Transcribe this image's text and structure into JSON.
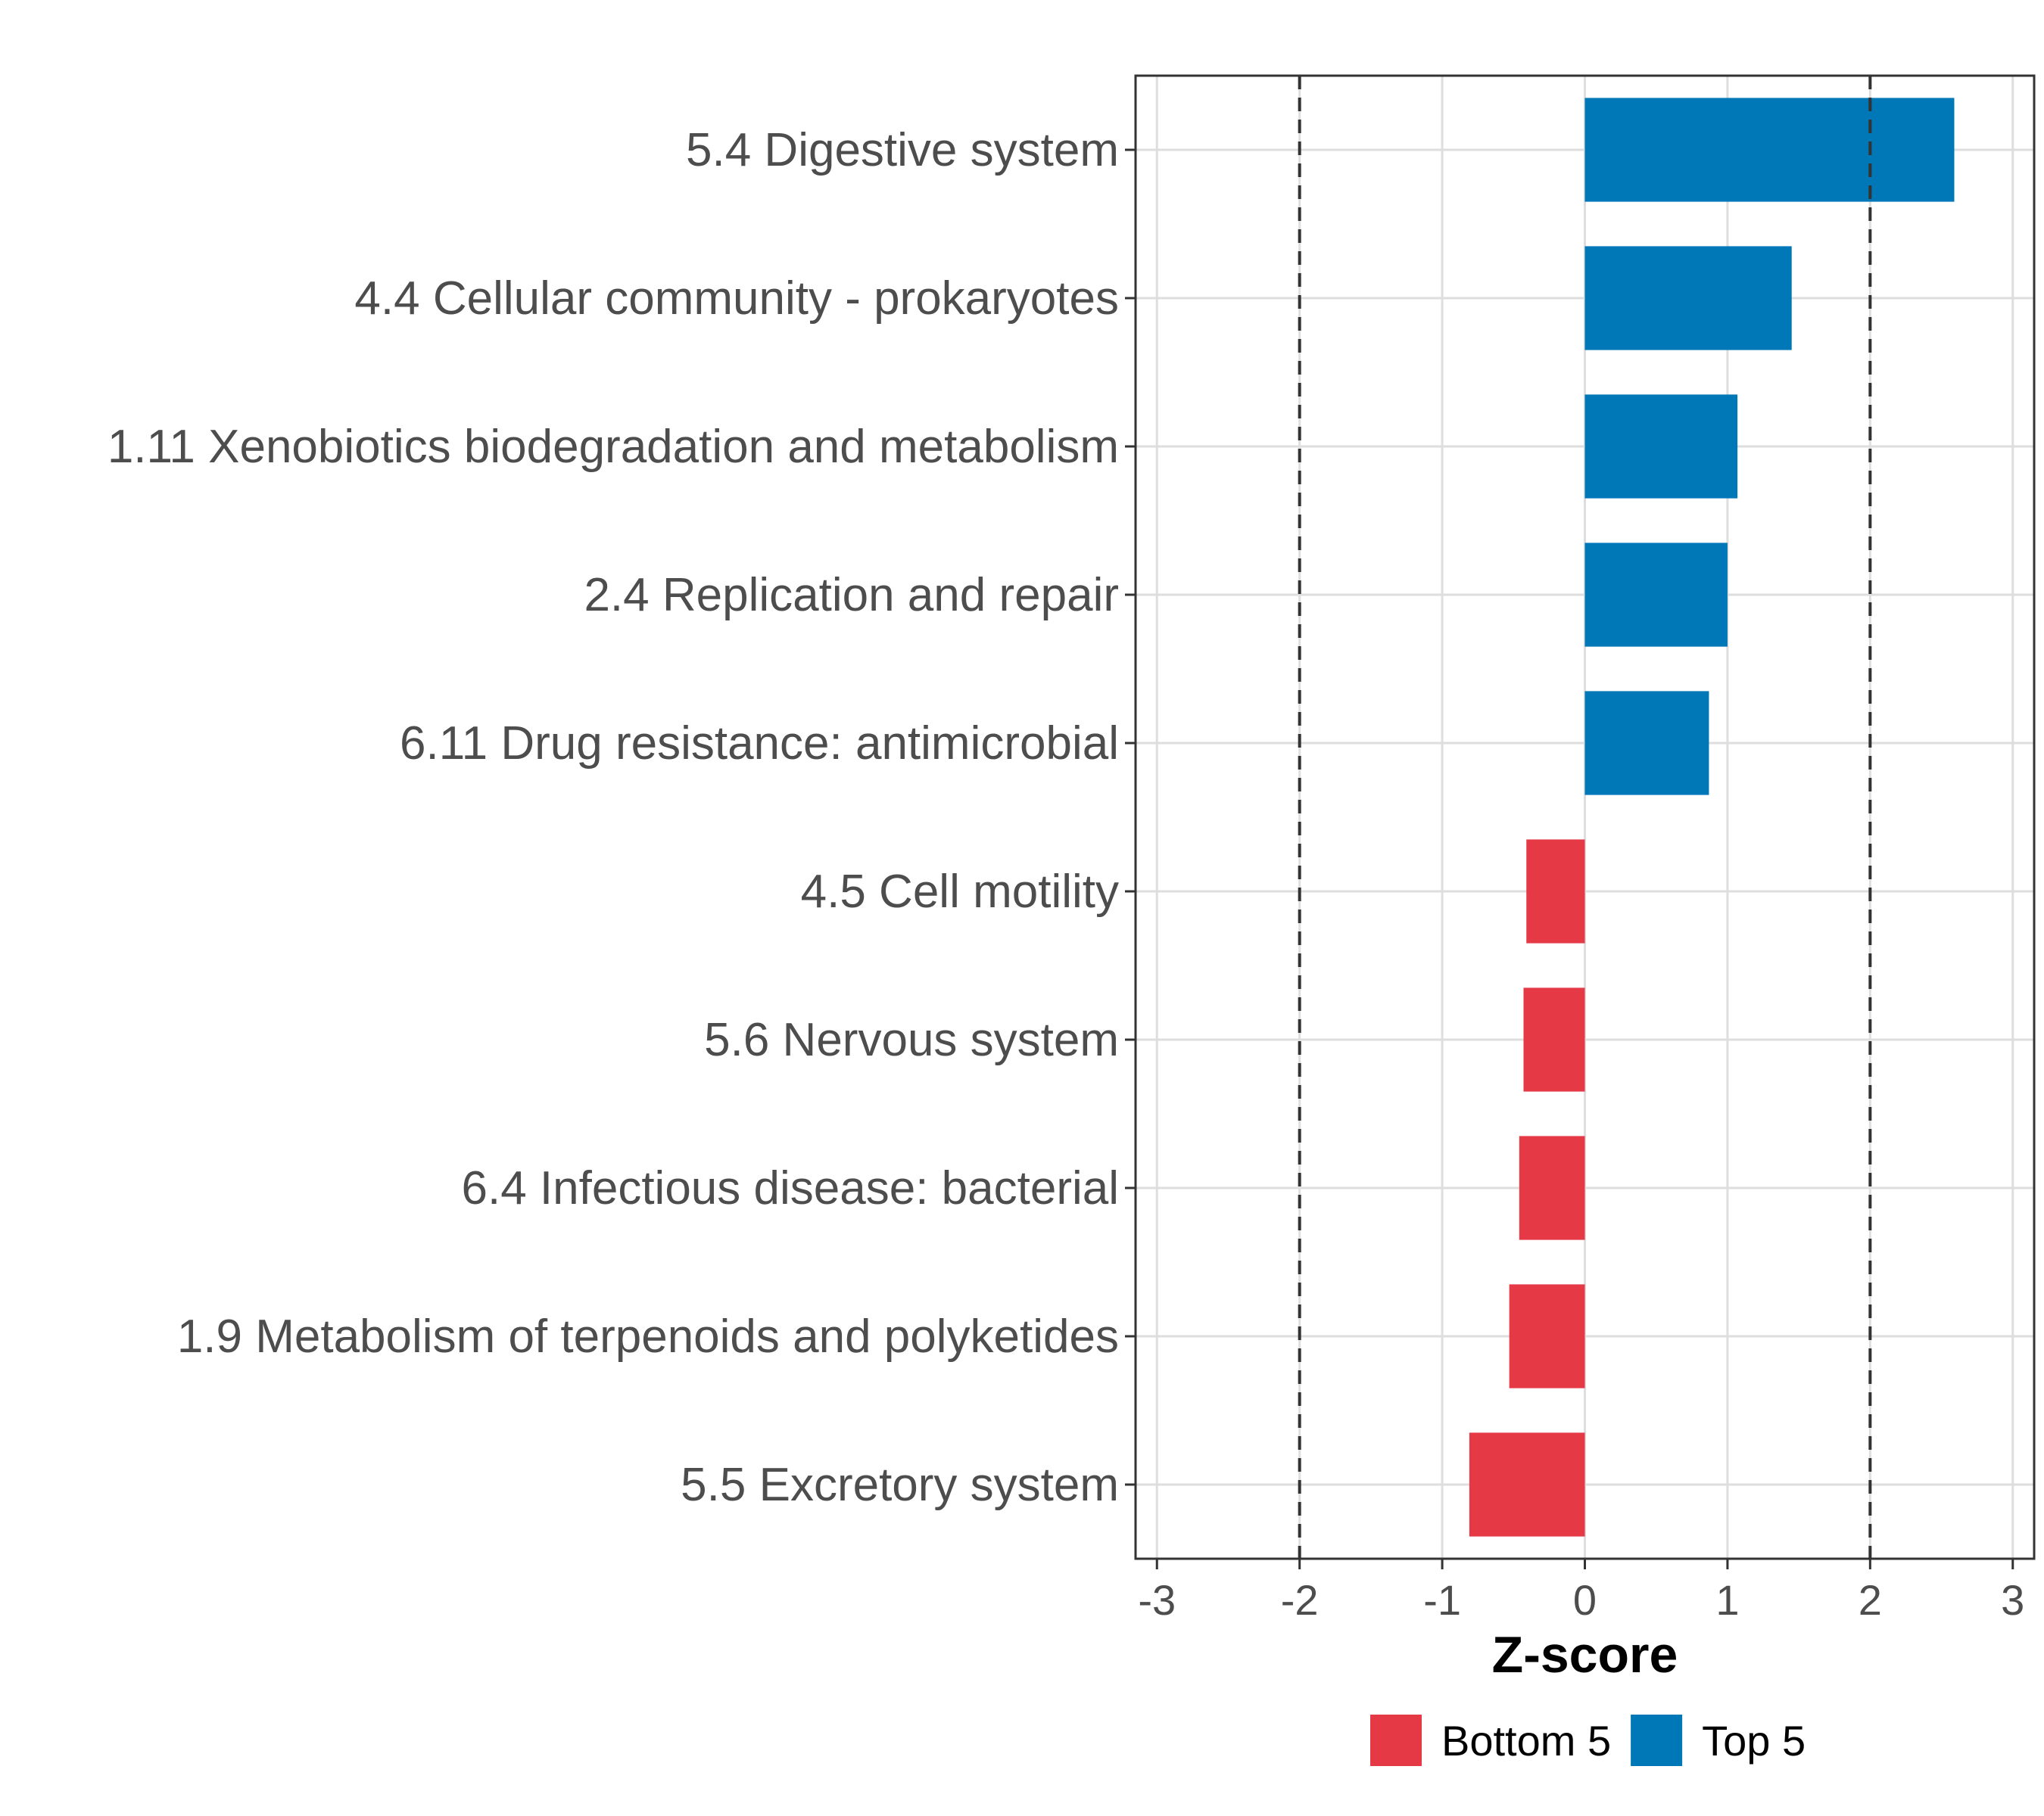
{
  "chart_data": {
    "type": "bar",
    "orientation": "horizontal",
    "categories": [
      "5.4 Digestive system",
      "4.4 Cellular community - prokaryotes",
      "1.11 Xenobiotics biodegradation and metabolism",
      "2.4 Replication and repair",
      "6.11 Drug resistance: antimicrobial",
      "4.5 Cell motility",
      "5.6 Nervous system",
      "6.4 Infectious disease: bacterial",
      "1.9 Metabolism of terpenoids and polyketides",
      "5.5 Excretory system"
    ],
    "values": [
      2.59,
      1.45,
      1.07,
      1.0,
      0.87,
      -0.41,
      -0.43,
      -0.46,
      -0.53,
      -0.81
    ],
    "groups": [
      "Top 5",
      "Top 5",
      "Top 5",
      "Top 5",
      "Top 5",
      "Bottom 5",
      "Bottom 5",
      "Bottom 5",
      "Bottom 5",
      "Bottom 5"
    ],
    "xlabel": "Z-score",
    "ylabel": "",
    "xlim": [
      -3.15,
      3.15
    ],
    "xticks": [
      -3,
      -2,
      -1,
      0,
      1,
      2,
      3
    ],
    "xtick_labels": [
      "-3",
      "-2",
      "-1",
      "0",
      "1",
      "2",
      "3"
    ],
    "reference_lines": [
      -2,
      2
    ],
    "grid": true,
    "legend": {
      "position": "bottom",
      "entries": [
        {
          "label": "Bottom 5",
          "color": "#e63946"
        },
        {
          "label": "Top 5",
          "color": "#0077b6"
        }
      ]
    }
  }
}
